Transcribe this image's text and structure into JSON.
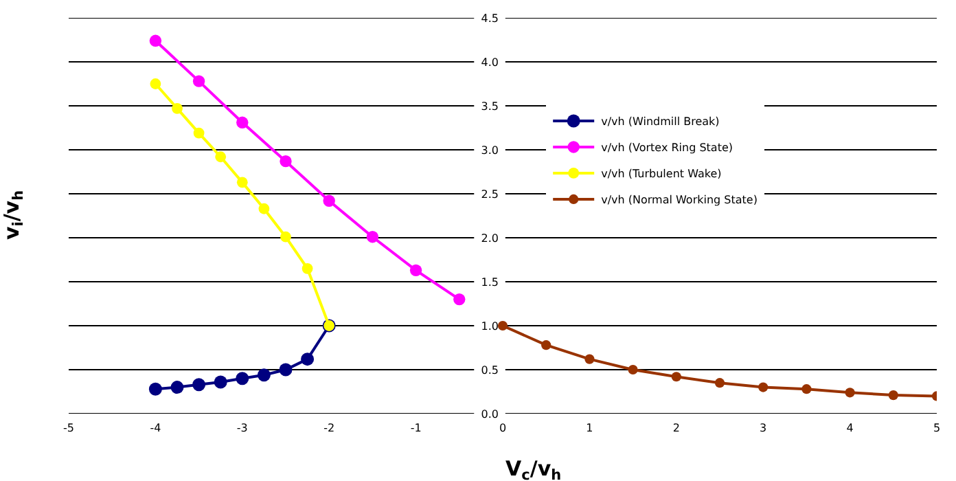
{
  "chart_data": {
    "type": "line",
    "xlabel": "V$_{c}$/v$_{h}$",
    "ylabel": "v$_{i}$/v$_{h}$",
    "xlim": [
      -5,
      5
    ],
    "xticks": [
      -5,
      -4,
      -3,
      -2,
      -1,
      0,
      1,
      2,
      3,
      4,
      5
    ],
    "ylim": [
      0,
      4.5
    ],
    "yticks": [
      {
        "value": 0,
        "label": "0.0"
      },
      {
        "value": 0.5,
        "label": "0.5"
      },
      {
        "value": 1,
        "label": "1.0"
      },
      {
        "value": 1.5,
        "label": "1.5"
      },
      {
        "value": 2,
        "label": "2.0"
      },
      {
        "value": 2.5,
        "label": "2.5"
      },
      {
        "value": 3,
        "label": "3.0"
      },
      {
        "value": 3.5,
        "label": "3.5"
      },
      {
        "value": 4,
        "label": "4.0"
      },
      {
        "value": 4.5,
        "label": "4.5"
      }
    ],
    "grid": "y",
    "legend": "top right",
    "marker": "circle",
    "line_style": "solid",
    "series": [
      {
        "name": "v/vh (Windmill Break)",
        "color": "#000080",
        "x": [
          -4,
          -3.75,
          -3.5,
          -3.25,
          -3,
          -2.75,
          -2.5,
          -2.25,
          -2
        ],
        "values": [
          0.28,
          0.3,
          0.33,
          0.36,
          0.4,
          0.44,
          0.5,
          0.62,
          1.0
        ]
      },
      {
        "name": "v/vh (Vortex Ring State)",
        "color": "#ff00ff",
        "x": [
          -4,
          -3.5,
          -3,
          -2.5,
          -2,
          -1.5,
          -1,
          -0.5
        ],
        "values": [
          4.24,
          3.78,
          3.31,
          2.87,
          2.42,
          2.01,
          1.63,
          1.3
        ]
      },
      {
        "name": "v/vh (Turbulent Wake)",
        "color": "#ffff00",
        "x": [
          -4,
          -3.75,
          -3.5,
          -3.25,
          -3,
          -2.75,
          -2.5,
          -2.25,
          -2
        ],
        "values": [
          3.75,
          3.47,
          3.19,
          2.92,
          2.63,
          2.33,
          2.01,
          1.65,
          1.0
        ]
      },
      {
        "name": "v/vh (Normal Working State)",
        "color": "#993300",
        "x": [
          0,
          0.5,
          1,
          1.5,
          2,
          2.5,
          3,
          3.5,
          4,
          4.5,
          5
        ],
        "values": [
          1.0,
          0.78,
          0.62,
          0.5,
          0.42,
          0.35,
          0.3,
          0.28,
          0.24,
          0.21,
          0.2
        ]
      }
    ]
  }
}
